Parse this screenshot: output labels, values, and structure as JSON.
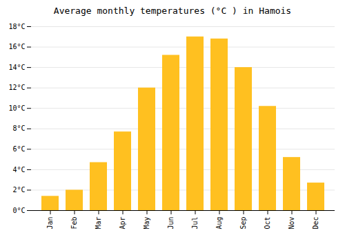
{
  "chart_data": {
    "type": "bar",
    "title": "Average monthly temperatures (°C ) in Hamois",
    "categories": [
      "Jan",
      "Feb",
      "Mar",
      "Apr",
      "May",
      "Jun",
      "Jul",
      "Aug",
      "Sep",
      "Oct",
      "Nov",
      "Dec"
    ],
    "values": [
      1.4,
      2.0,
      4.7,
      7.7,
      12.0,
      15.2,
      17.0,
      16.8,
      14.0,
      10.2,
      5.2,
      2.7
    ],
    "color": "#FFC020",
    "ylim": [
      0,
      18
    ],
    "yticks": [
      {
        "value": 0,
        "label": "0°C"
      },
      {
        "value": 2,
        "label": "2°C"
      },
      {
        "value": 4,
        "label": "4°C"
      },
      {
        "value": 6,
        "label": "6°C"
      },
      {
        "value": 8,
        "label": "8°C"
      },
      {
        "value": 10,
        "label": "10°C"
      },
      {
        "value": 12,
        "label": "12°C"
      },
      {
        "value": 14,
        "label": "14°C"
      },
      {
        "value": 16,
        "label": "16°C"
      },
      {
        "value": 18,
        "label": "18°C"
      }
    ],
    "grid": true
  }
}
